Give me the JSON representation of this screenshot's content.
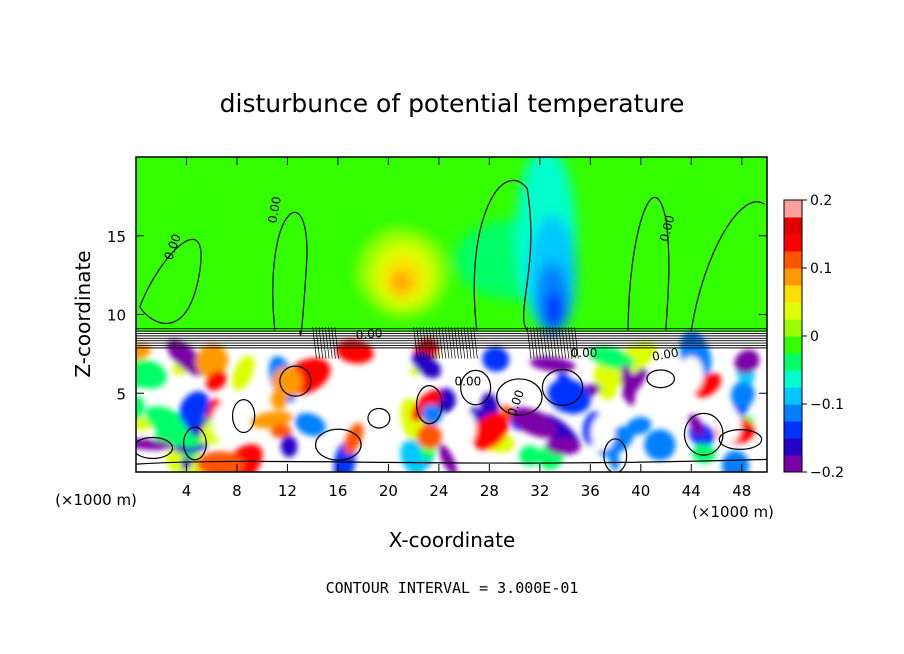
{
  "chart_data": {
    "type": "heatmap",
    "title": "disturbunce of potential temperature",
    "xlabel": "X-coordinate",
    "ylabel": "Z-coordinate",
    "x_unit": "(×1000 m)",
    "x_unit_right": "(×1000 m)",
    "xlim": [
      0,
      50
    ],
    "ylim": [
      0,
      20
    ],
    "x_ticks": [
      4,
      8,
      12,
      16,
      20,
      24,
      28,
      32,
      36,
      40,
      44,
      48
    ],
    "y_ticks": [
      5,
      10,
      15
    ],
    "colorbar": {
      "range": [
        -0.2,
        0.2
      ],
      "tick_values": [
        0.2,
        0.1,
        0,
        -0.1,
        -0.2
      ],
      "tick_labels": [
        "0.2",
        "0.1",
        "0",
        "−0.1",
        "−0.2"
      ],
      "colors": [
        "#7b00a8",
        "#2600c8",
        "#0033ff",
        "#0080ff",
        "#00c8ff",
        "#00ffcc",
        "#00ff66",
        "#33ff00",
        "#99ff00",
        "#ddff00",
        "#ffdd00",
        "#ff9900",
        "#ff5500",
        "#ff0000",
        "#e00000",
        "#ffa0a0"
      ]
    },
    "contour_labels": [
      "0.00",
      "0.00",
      "0.00",
      "0.00",
      "0.00",
      "0.00",
      "0.00",
      "0.00"
    ],
    "footer": "CONTOUR INTERVAL = 3.000E-01",
    "features": {
      "tropopause_z": 9,
      "warm_anomaly": {
        "x": 21,
        "z": 12,
        "value": 0.13
      },
      "cold_anomaly": {
        "x": 33,
        "z": 11,
        "value": -0.12
      },
      "background_value": 0.02
    }
  }
}
